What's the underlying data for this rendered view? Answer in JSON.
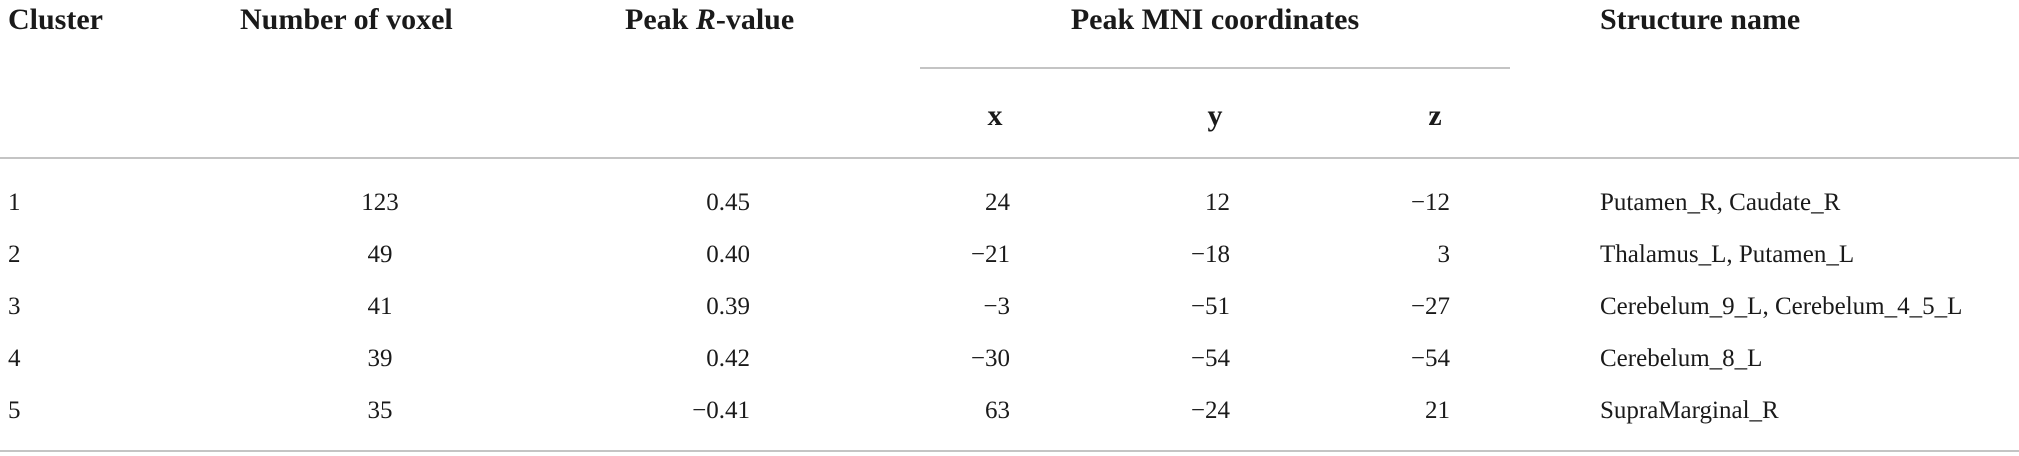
{
  "table": {
    "headers": {
      "cluster": "Cluster",
      "voxels": "Number of voxel",
      "peak_r_prefix": "Peak ",
      "peak_r_italic": "R",
      "peak_r_suffix": "-value",
      "mni": "Peak MNI coordinates",
      "structure": "Structure name",
      "x": "x",
      "y": "y",
      "z": "z"
    },
    "rows": [
      {
        "cluster": "1",
        "voxels": "123",
        "r": "0.45",
        "x": "24",
        "y": "12",
        "z": "−12",
        "structure": "Putamen_R, Caudate_R"
      },
      {
        "cluster": "2",
        "voxels": "49",
        "r": "0.40",
        "x": "−21",
        "y": "−18",
        "z": "3",
        "structure": "Thalamus_L, Putamen_L"
      },
      {
        "cluster": "3",
        "voxels": "41",
        "r": "0.39",
        "x": "−3",
        "y": "−51",
        "z": "−27",
        "structure": "Cerebelum_9_L, Cerebelum_4_5_L"
      },
      {
        "cluster": "4",
        "voxels": "39",
        "r": "0.42",
        "x": "−30",
        "y": "−54",
        "z": "−54",
        "structure": "Cerebelum_8_L"
      },
      {
        "cluster": "5",
        "voxels": "35",
        "r": "−0.41",
        "x": "63",
        "y": "−24",
        "z": "21",
        "structure": "SupraMarginal_R"
      }
    ]
  }
}
